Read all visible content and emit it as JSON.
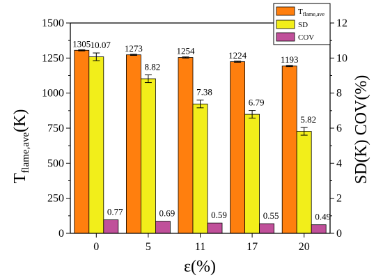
{
  "chart_data": {
    "type": "bar",
    "categories": [
      "0",
      "5",
      "11",
      "17",
      "20"
    ],
    "xlabel": "ε(%)",
    "ylabel_left": {
      "main": "T",
      "sub": "flame,ave",
      "suffix": "(K)"
    },
    "ylabel_right": "SD(K) COV(%)",
    "ylim_left": [
      0,
      1500
    ],
    "ylim_right": [
      0,
      12
    ],
    "yticks_left": [
      "0",
      "250",
      "500",
      "750",
      "1000",
      "1250",
      "1500"
    ],
    "yticks_right": [
      "0",
      "2",
      "4",
      "6",
      "8",
      "10",
      "12"
    ],
    "series": [
      {
        "name": "T",
        "name_sub": "flame,ave",
        "axis": "left",
        "color": "#ff7f0e",
        "values": [
          1305,
          1273,
          1254,
          1224,
          1193
        ],
        "errors": [
          4,
          4,
          4,
          4,
          4
        ],
        "labels": [
          "1305",
          "1273",
          "1254",
          "1224",
          "1193"
        ]
      },
      {
        "name": "SD",
        "axis": "right",
        "color": "#f2ee1a",
        "values": [
          10.07,
          8.82,
          7.38,
          6.79,
          5.82
        ],
        "errors": [
          0.22,
          0.22,
          0.22,
          0.22,
          0.22
        ],
        "labels": [
          "10.07",
          "8.82",
          "7.38",
          "6.79",
          "5.82"
        ]
      },
      {
        "name": "COV",
        "axis": "right",
        "color": "#c0509a",
        "values": [
          0.77,
          0.69,
          0.59,
          0.55,
          0.49
        ],
        "errors": [
          0,
          0,
          0,
          0,
          0
        ],
        "labels": [
          "0.77",
          "0.69",
          "0.59",
          "0.55",
          "0.49"
        ]
      }
    ],
    "legend": "top-right",
    "grid": false
  }
}
